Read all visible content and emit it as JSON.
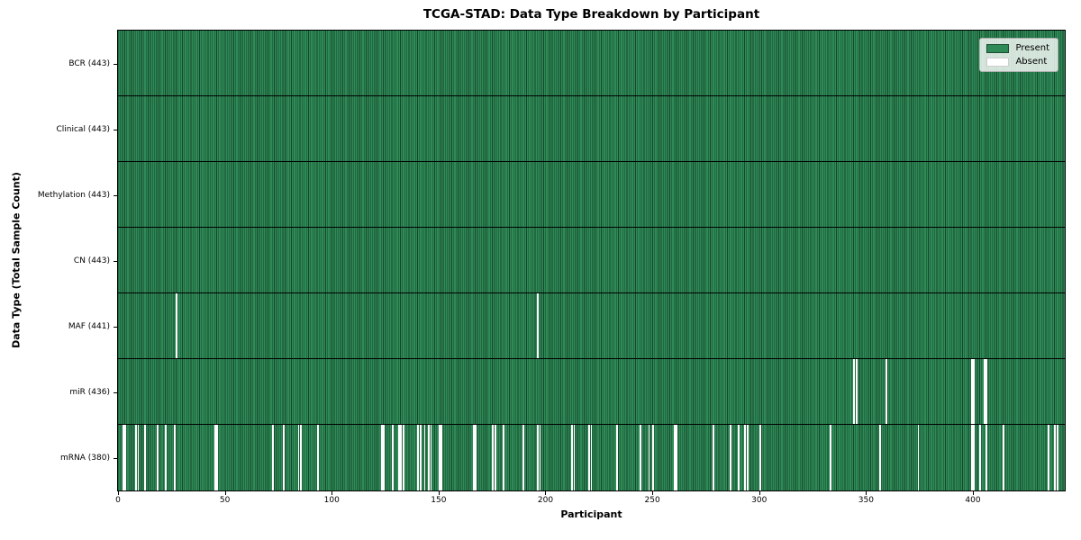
{
  "figure": {
    "title": "TCGA-STAD: Data Type Breakdown by Participant"
  },
  "chart_data": {
    "type": "heatmap",
    "title": "TCGA-STAD: Data Type Breakdown by Participant",
    "xlabel": "Participant",
    "ylabel": "Data Type (Total Sample Count)",
    "x_ticks": [
      0,
      50,
      100,
      150,
      200,
      250,
      300,
      350,
      400
    ],
    "xlim": [
      0,
      443
    ],
    "n_participants": 443,
    "grid": false,
    "legend": {
      "position": "upper-right",
      "entries": [
        {
          "label": "Present",
          "color": "#2e8b57"
        },
        {
          "label": "Absent",
          "color": "#ffffff"
        }
      ]
    },
    "colors": {
      "present": "#2e8b57",
      "absent": "#ffffff",
      "cell_edge": "#000000",
      "plot_border": "#000000"
    },
    "rows": [
      {
        "label": "BCR (443)",
        "data_type": "BCR",
        "present_count": 443,
        "absent_count": 0,
        "absent_participants": []
      },
      {
        "label": "Clinical (443)",
        "data_type": "Clinical",
        "present_count": 443,
        "absent_count": 0,
        "absent_participants": []
      },
      {
        "label": "Methylation (443)",
        "data_type": "Methylation",
        "present_count": 443,
        "absent_count": 0,
        "absent_participants": []
      },
      {
        "label": "CN (443)",
        "data_type": "CN",
        "present_count": 443,
        "absent_count": 0,
        "absent_participants": []
      },
      {
        "label": "MAF (441)",
        "data_type": "MAF",
        "present_count": 441,
        "absent_count": 2,
        "absent_participants": [
          27,
          196
        ]
      },
      {
        "label": "miR (436)",
        "data_type": "miR",
        "present_count": 436,
        "absent_count": 7,
        "absent_participants": [
          344,
          345,
          359,
          399,
          400,
          405,
          406
        ]
      },
      {
        "label": "mRNA (380)",
        "data_type": "mRNA",
        "present_count": 380,
        "absent_count": 63,
        "absent_participants": [
          2,
          3,
          8,
          9,
          12,
          18,
          22,
          26,
          45,
          46,
          72,
          77,
          84,
          85,
          93,
          123,
          124,
          128,
          131,
          132,
          133,
          140,
          141,
          143,
          145,
          146,
          150,
          151,
          166,
          167,
          175,
          176,
          180,
          189,
          196,
          197,
          212,
          213,
          220,
          221,
          233,
          244,
          248,
          250,
          260,
          261,
          278,
          286,
          290,
          293,
          294,
          300,
          333,
          356,
          374,
          399,
          400,
          403,
          406,
          414,
          435,
          438,
          439
        ]
      }
    ]
  }
}
